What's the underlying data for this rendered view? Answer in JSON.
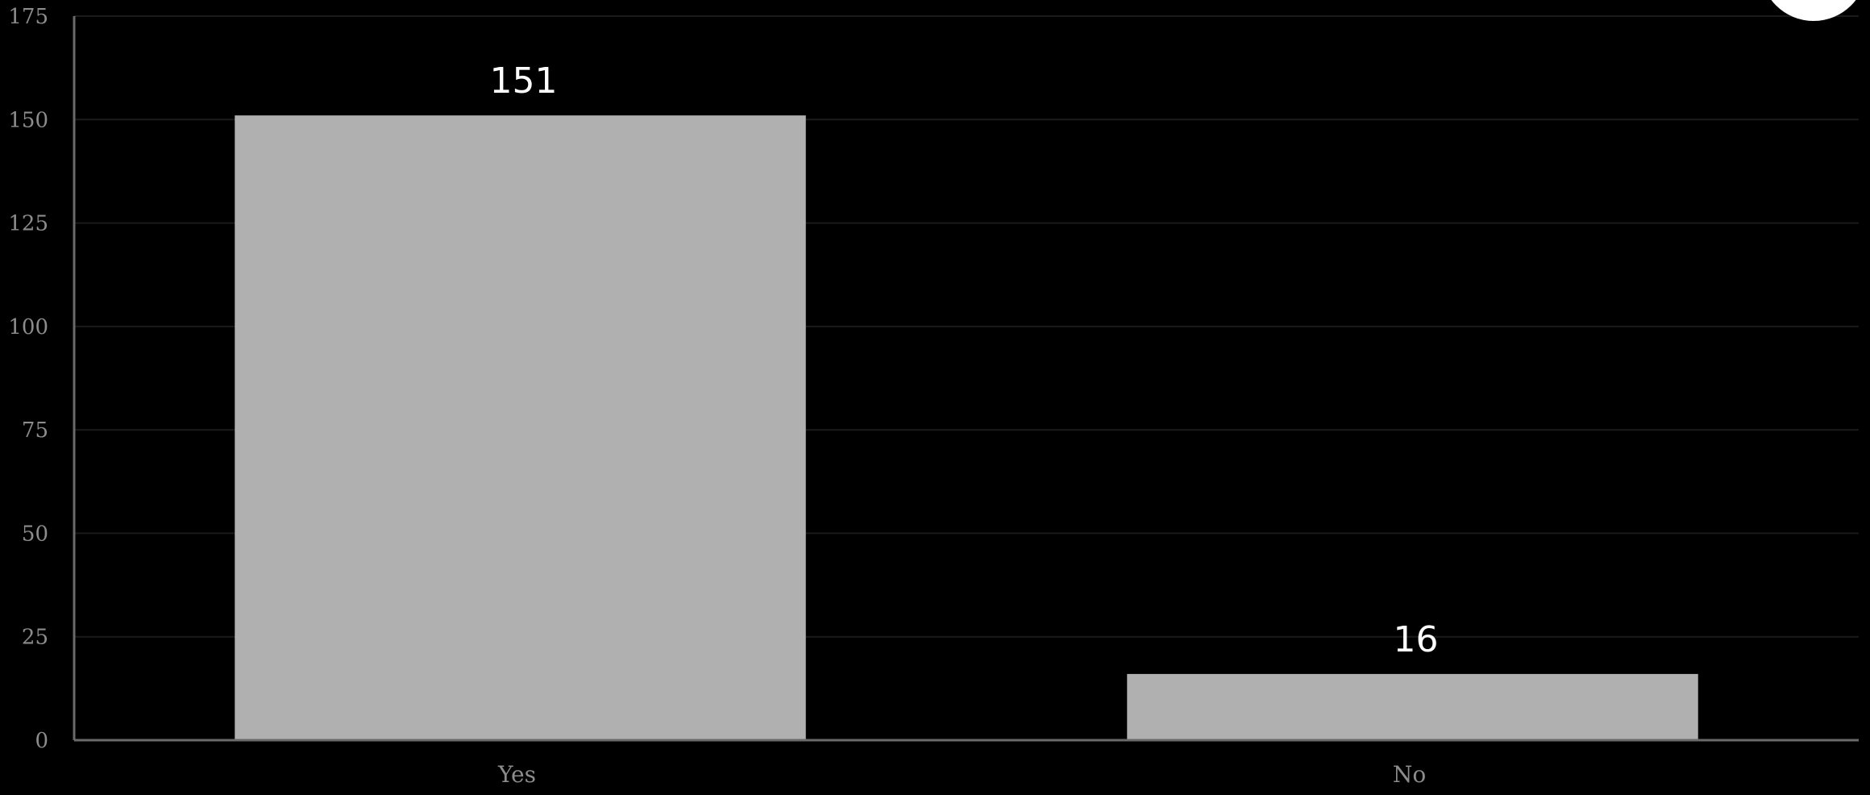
{
  "chart_data": {
    "type": "bar",
    "categories": [
      "Yes",
      "No"
    ],
    "values": [
      151,
      16
    ],
    "data_labels": [
      "151",
      "16"
    ],
    "ylim": [
      0,
      175
    ],
    "yticks": [
      0,
      25,
      50,
      75,
      100,
      125,
      150,
      175
    ],
    "grid": true,
    "title": "",
    "xlabel": "",
    "ylabel": "",
    "colors": {
      "background": "#000000",
      "bar": "#b0b0b0",
      "grid": "#1a1a1a",
      "axis": "#6a6a6a",
      "tick_text": "#8c8c8c",
      "data_label_text": "#ffffff",
      "corner_badge": "#ffffff"
    }
  }
}
